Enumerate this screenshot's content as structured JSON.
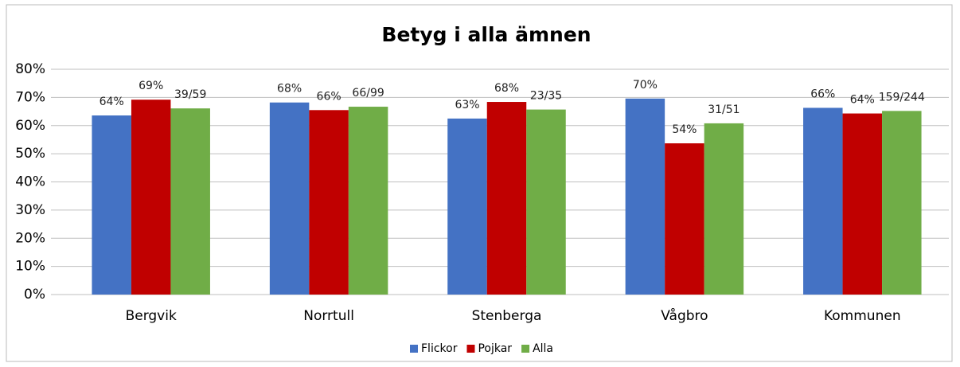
{
  "chart_data": {
    "type": "bar",
    "title": "Betyg i alla ämnen",
    "categories": [
      "Bergvik",
      "Norrtull",
      "Stenberga",
      "Vågbro",
      "Kommunen"
    ],
    "series": [
      {
        "name": "Flickor",
        "color": "#4472c4",
        "values": [
          63.6,
          68.2,
          62.5,
          69.6,
          66.3
        ],
        "value_labels": [
          "64%",
          "68%",
          "63%",
          "70%",
          "66%"
        ]
      },
      {
        "name": "Pojkar",
        "color": "#c00000",
        "values": [
          69.2,
          65.5,
          68.4,
          53.7,
          64.3
        ],
        "value_labels": [
          "69%",
          "66%",
          "68%",
          "54%",
          "64%"
        ]
      },
      {
        "name": "Alla",
        "color": "#70ad47",
        "values": [
          66.1,
          66.7,
          65.7,
          60.8,
          65.2
        ],
        "value_labels": [
          "39/59",
          "66/99",
          "23/35",
          "31/51",
          "159/244"
        ]
      }
    ],
    "ylim": [
      0,
      80
    ],
    "yticks": [
      {
        "value": 0,
        "label": "0%"
      },
      {
        "value": 10,
        "label": "10%"
      },
      {
        "value": 20,
        "label": "20%"
      },
      {
        "value": 30,
        "label": "30%"
      },
      {
        "value": 40,
        "label": "40%"
      },
      {
        "value": 50,
        "label": "50%"
      },
      {
        "value": 60,
        "label": "60%"
      },
      {
        "value": 70,
        "label": "70%"
      },
      {
        "value": 80,
        "label": "80%"
      }
    ],
    "grid": true,
    "legend": "bottom"
  }
}
